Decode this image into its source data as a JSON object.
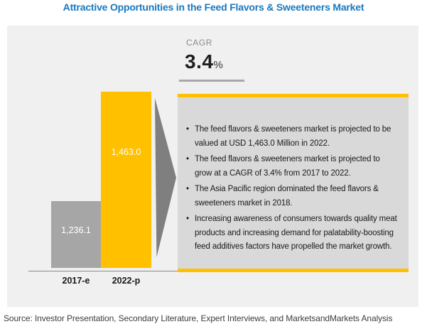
{
  "header": {
    "title": "Attractive Opportunities in the Feed Flavors & Sweeteners Market"
  },
  "cagr": {
    "label": "CAGR",
    "value": "3.4",
    "unit": "%"
  },
  "chart_data": {
    "type": "bar",
    "title": "Attractive Opportunities in the Feed Flavors & Sweeteners Market",
    "categories": [
      "2017-e",
      "2022-p"
    ],
    "values": [
      1236.1,
      1463.0
    ],
    "value_labels": [
      "1,236.1",
      "1,463.0"
    ],
    "unit": "USD Million",
    "cagr": "3.4%",
    "bar_colors": [
      "#a6a6a6",
      "#ffc000"
    ],
    "xlabel": "",
    "ylabel": "",
    "grid": false,
    "legend": false
  },
  "box": {
    "bullets": [
      "The feed flavors & sweeteners market is projected to be valued at USD 1,463.0 Million in 2022.",
      "The feed flavors & sweeteners market is projected to grow at a CAGR of 3.4% from 2017 to 2022.",
      "The Asia Pacific region dominated the feed flavors & sweeteners market in 2018.",
      "Increasing awareness of consumers towards quality meat products and increasing demand for palatability-boosting feed additives factors have propelled the market growth."
    ]
  },
  "footer": {
    "source": "Source: Investor Presentation, Secondary Literature, Expert Interviews, and MarketsandMarkets Analysis"
  },
  "colors": {
    "title_blue": "#1878be",
    "accent_yellow": "#ffc000",
    "bar_gray": "#a6a6a6",
    "arrow_gray": "#7f7f7f",
    "panel_bg": "#f0f0f1",
    "box_bg": "#d9d9d9"
  }
}
